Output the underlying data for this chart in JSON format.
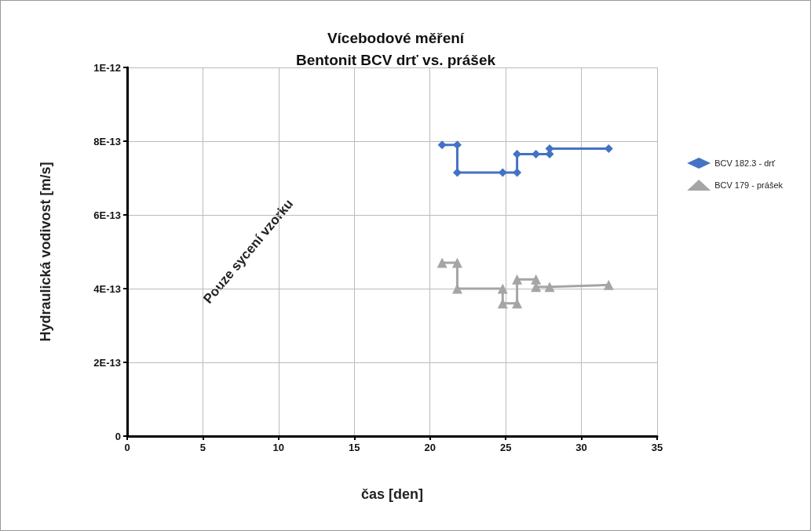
{
  "chart_data": {
    "type": "line",
    "title": "Vícebodové měření\nBentonit BCV drť vs. prášek",
    "xlabel": "čas [den]",
    "ylabel": "Hydraulická vodivost [m/s]",
    "xlim": [
      0,
      35
    ],
    "xticks": [
      0,
      5,
      10,
      15,
      20,
      25,
      30,
      35
    ],
    "ylim": [
      0,
      1e-12
    ],
    "yticks": [
      0,
      {
        "value": 2e-13,
        "label": "2E-13"
      },
      {
        "value": 4e-13,
        "label": "4E-13"
      },
      {
        "value": 6e-13,
        "label": "6E-13"
      },
      {
        "value": 8e-13,
        "label": "8E-13"
      },
      {
        "value": 1e-12,
        "label": "1E-12"
      }
    ],
    "grid": true,
    "legend": "right",
    "annotations": [
      "Pouze sycení vzorku"
    ],
    "series": [
      {
        "name": "BCV 182.3 - drť",
        "color": "#4472c4",
        "marker": "diamond",
        "x": [
          20.8,
          21.8,
          21.8,
          24.8,
          25.75,
          25.75,
          27.0,
          27.9,
          27.9,
          31.8
        ],
        "values": [
          7.9e-13,
          7.9e-13,
          7.15e-13,
          7.15e-13,
          7.15e-13,
          7.65e-13,
          7.65e-13,
          7.65e-13,
          7.8e-13,
          7.8e-13
        ]
      },
      {
        "name": "BCV 179 - prášek",
        "color": "#a5a5a5",
        "marker": "triangle",
        "x": [
          20.8,
          21.8,
          21.8,
          24.8,
          24.8,
          25.75,
          25.75,
          27.0,
          27.0,
          27.9,
          31.8
        ],
        "values": [
          4.7e-13,
          4.7e-13,
          4e-13,
          4e-13,
          3.6e-13,
          3.6e-13,
          4.25e-13,
          4.25e-13,
          4.05e-13,
          4.05e-13,
          4.1e-13
        ]
      }
    ]
  }
}
